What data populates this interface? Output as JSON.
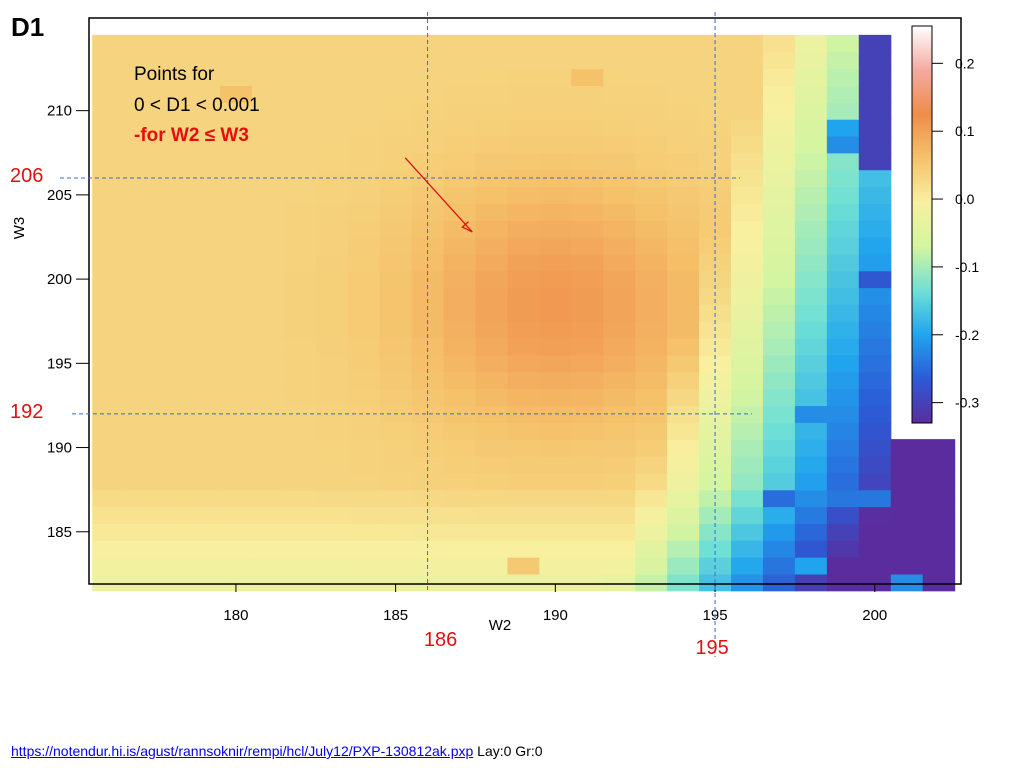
{
  "page": {
    "slide_title": "D1",
    "footer_link": "https://notendur.hi.is/agust/rannsoknir/rempi/hcl/July12/PXP-130812ak.pxp",
    "footer_info": "Lay:0 Gr:0"
  },
  "colors": {
    "marker": "#e01010",
    "guide_lines": "#3a6bc8"
  },
  "chart_data": {
    "type": "heatmap",
    "title": "",
    "xlabel": "W2",
    "ylabel": "W3",
    "xlim": [
      175.4,
      202.7
    ],
    "ylim": [
      181.9,
      215.5
    ],
    "x_ticks": [
      180,
      185,
      190,
      195,
      200
    ],
    "y_ticks": [
      185,
      190,
      195,
      200,
      205,
      210
    ],
    "grid": false,
    "colorscale": {
      "min": -0.33,
      "max": 0.255,
      "ticks": [
        0.2,
        0.1,
        0.0,
        -0.1,
        -0.2,
        -0.3
      ],
      "tick_labels": [
        "0.2",
        "0.1",
        "0.0",
        "-0.1",
        "-0.2",
        "-0.3"
      ],
      "colors": [
        "#5b2c9e",
        "#2c5bd6",
        "#21a4ee",
        "#6fe0d6",
        "#d4f5a0",
        "#f8f0a0",
        "#f5c26a",
        "#f08c4a",
        "#f4a9a0",
        "#ffffff"
      ]
    },
    "grid_spec": {
      "x_start": 176,
      "x_step": 1,
      "nx": 27,
      "y_start": 182,
      "y_step": 1,
      "ny": 33
    },
    "data_region": {
      "W2_max_for_y_above_190": 200.5
    },
    "value_model": {
      "base": 0.035,
      "peak": {
        "x": 190,
        "y": 198.5,
        "amp": 0.075,
        "sx": 3.2,
        "sy": 5.0
      },
      "drop_start_x": 193,
      "drop_start_x_per_y": 0.15,
      "drop_rate": 0.045,
      "bottom_dip": {
        "y_below": 188,
        "amount": 0.01
      },
      "deep_blue_corner": {
        "x_min": 199.5,
        "y_min": 206.5,
        "value": -0.3
      }
    },
    "special_cells": [
      {
        "x": 199,
        "y": 187,
        "v": -0.24
      },
      {
        "x": 198,
        "y": 192,
        "v": -0.22
      },
      {
        "x": 200,
        "y": 187,
        "v": -0.24
      },
      {
        "x": 200,
        "y": 200,
        "v": -0.27
      },
      {
        "x": 201,
        "y": 190,
        "v": -0.33
      },
      {
        "x": 199,
        "y": 185,
        "v": -0.3
      },
      {
        "x": 197,
        "y": 187,
        "v": -0.25
      },
      {
        "x": 198,
        "y": 183,
        "v": -0.2
      },
      {
        "x": 201,
        "y": 182,
        "v": -0.22
      },
      {
        "x": 199,
        "y": 209,
        "v": -0.2
      },
      {
        "x": 199,
        "y": 208,
        "v": -0.22
      },
      {
        "x": 191,
        "y": 212,
        "v": 0.06
      },
      {
        "x": 180,
        "y": 211,
        "v": 0.06
      },
      {
        "x": 189,
        "y": 183,
        "v": 0.05
      },
      {
        "x": 200,
        "y": 214,
        "v": -0.3
      },
      {
        "x": 201,
        "y": 213,
        "v": -0.3
      }
    ],
    "annotation": {
      "lines": [
        "Points for",
        "0 < D1 < 0.001",
        "-for W2 ≤ W3"
      ],
      "arrow_from": [
        185.3,
        207.2
      ],
      "arrow_to": [
        187.4,
        202.8
      ]
    },
    "markers": {
      "vertical": [
        {
          "x": 186,
          "label": "186"
        },
        {
          "x": 195,
          "label": "195"
        }
      ],
      "horizontal": [
        {
          "y": 206,
          "label": "206"
        },
        {
          "y": 192,
          "label": "192"
        }
      ]
    }
  }
}
